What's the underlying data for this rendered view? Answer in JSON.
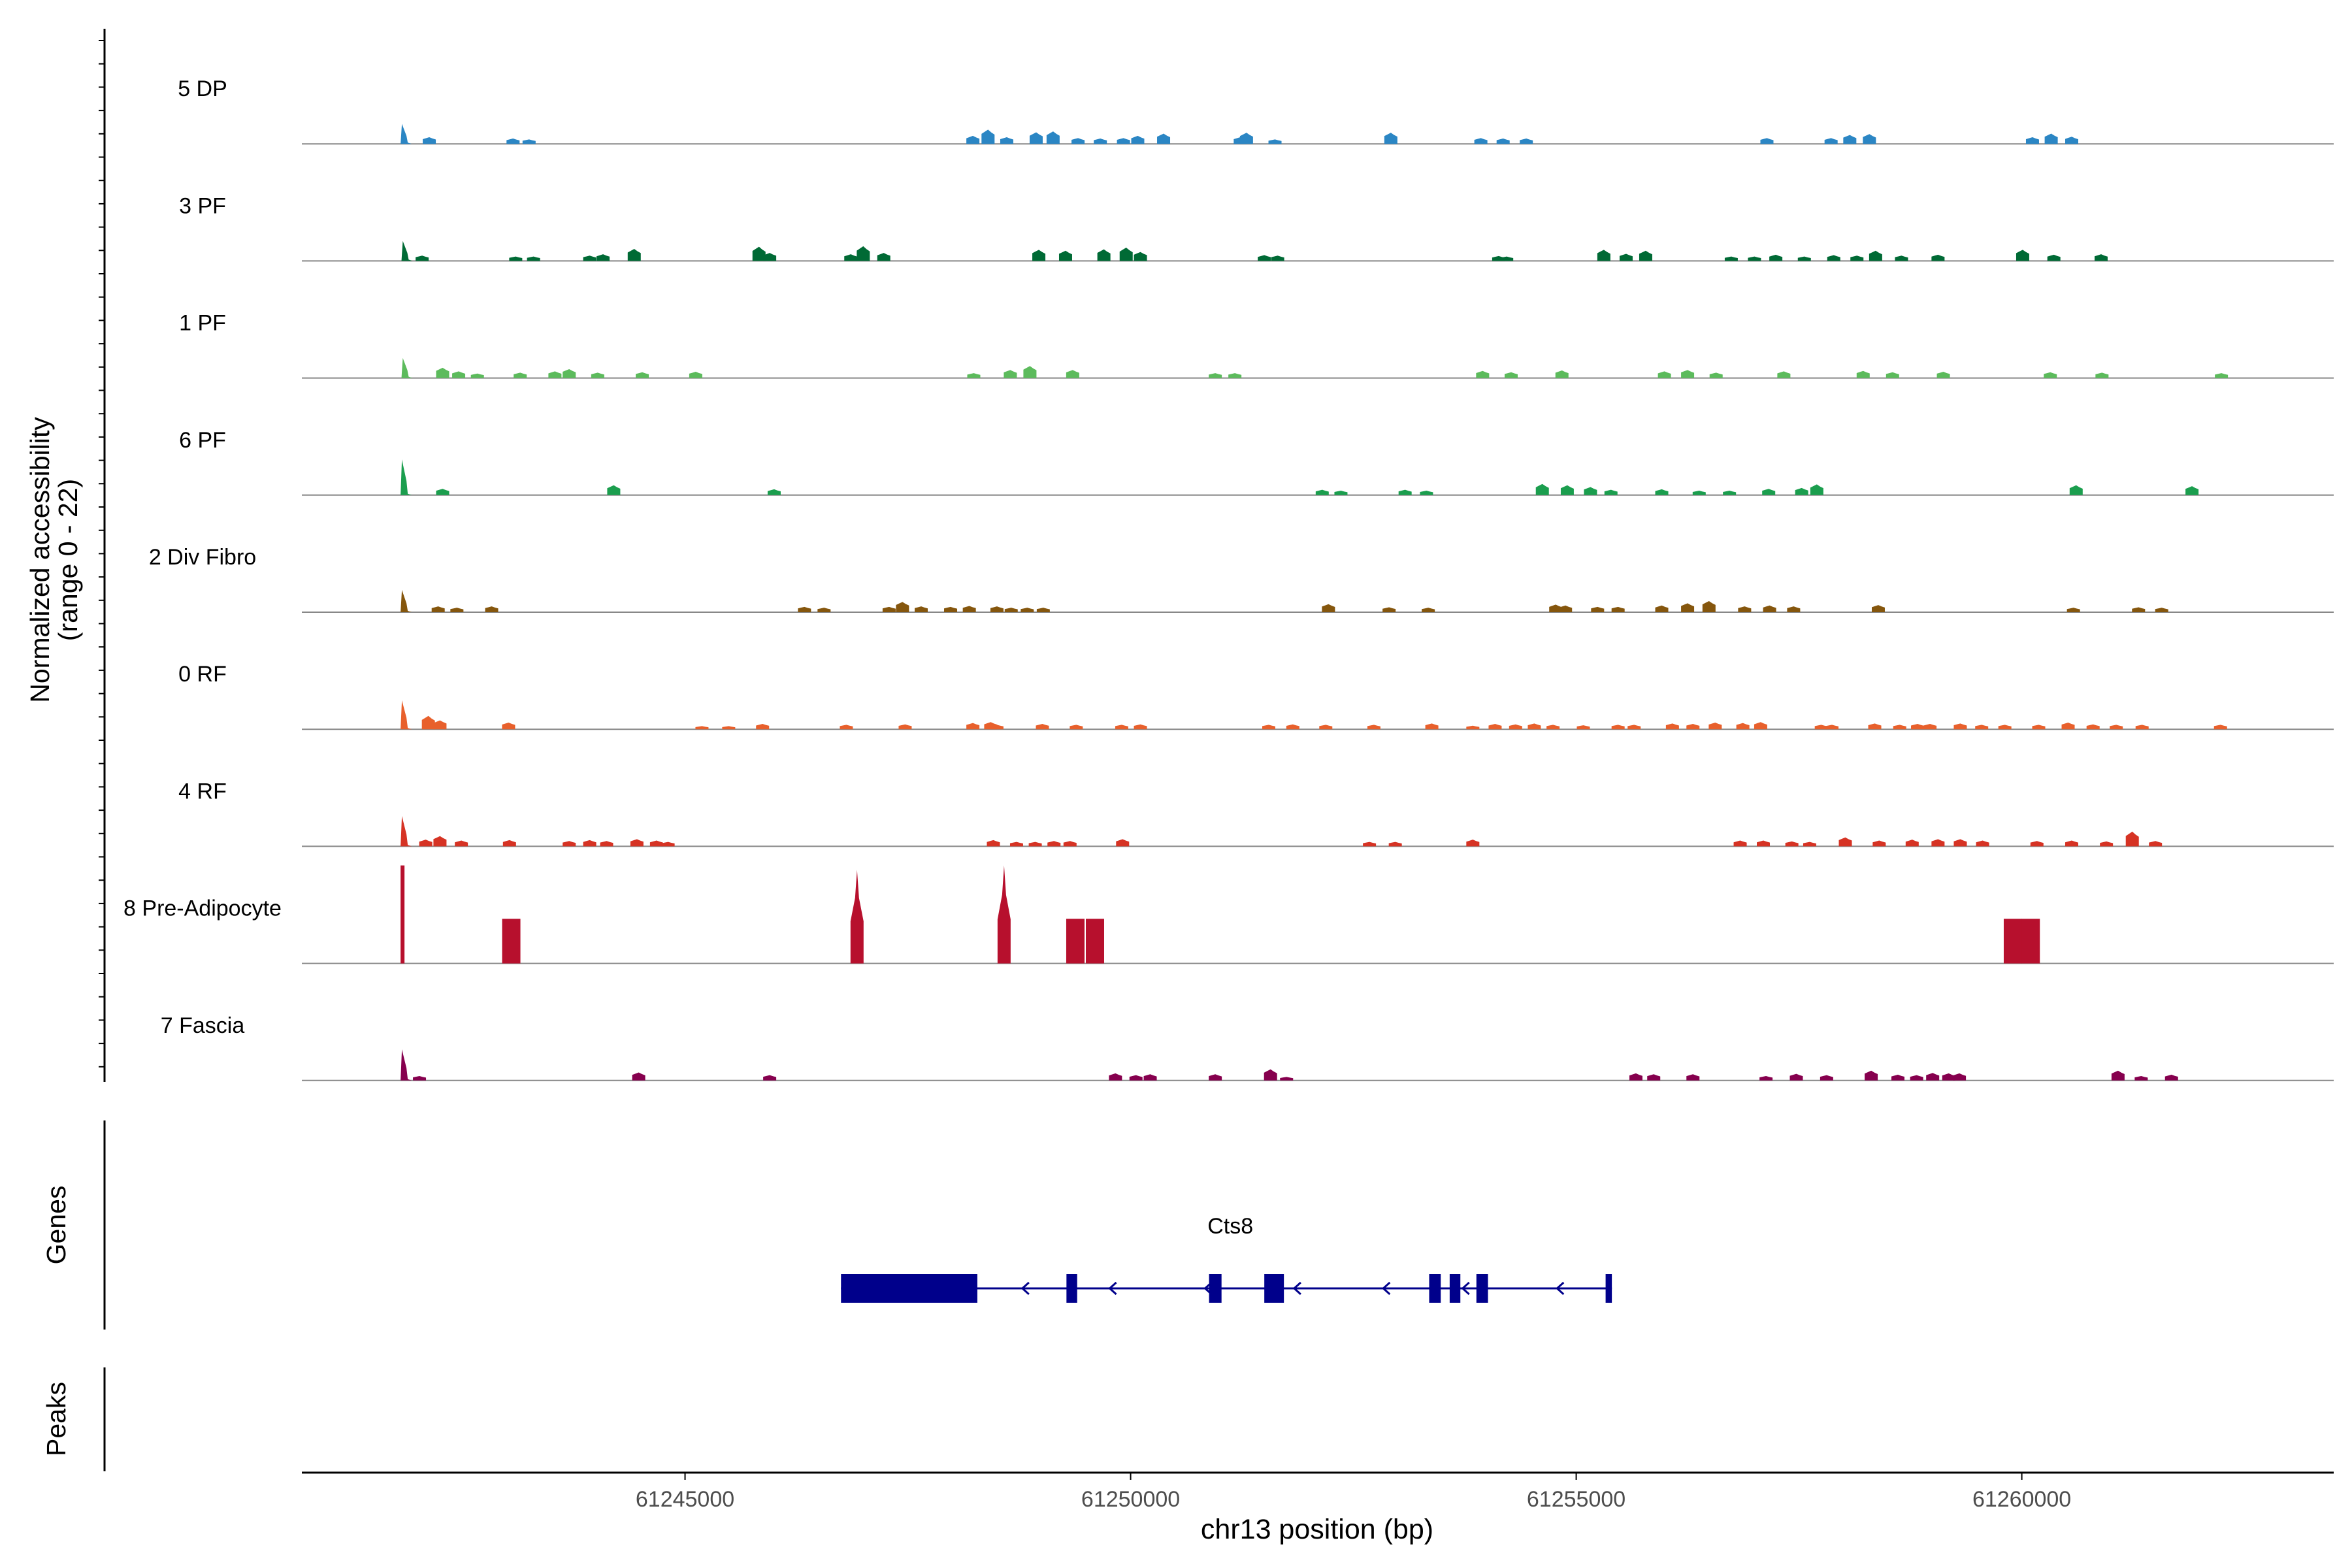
{
  "chart_data": {
    "type": "area",
    "title": "",
    "xlabel": "chr13 position (bp)",
    "ylabel": "Normalized accessibility\n(range 0 - 22)",
    "ylim": [
      0,
      22
    ],
    "xlim": [
      61240700,
      61263500
    ],
    "x_ticks": [
      61245000,
      61250000,
      61255000,
      61260000
    ],
    "x_tick_labels": [
      "61245000",
      "61250000",
      "61255000",
      "61260000"
    ],
    "track_labels": {
      "genes": "Genes",
      "peaks": "Peaks"
    },
    "series": [
      {
        "name": "5 DP",
        "color": "#2b86c4",
        "points": [
          [
            61241830,
            4.5
          ],
          [
            61242130,
            1.5
          ],
          [
            61243070,
            1.2
          ],
          [
            61243250,
            1
          ],
          [
            61248230,
            1.8
          ],
          [
            61248400,
            3.2
          ],
          [
            61248610,
            1.5
          ],
          [
            61248940,
            2.6
          ],
          [
            61249130,
            2.8
          ],
          [
            61249410,
            1.3
          ],
          [
            61249660,
            1.2
          ],
          [
            61249920,
            1.3
          ],
          [
            61250080,
            1.8
          ],
          [
            61250370,
            2.3
          ],
          [
            61251230,
            1.5
          ],
          [
            61251300,
            2.5
          ],
          [
            61251620,
            1
          ],
          [
            61252920,
            2.5
          ],
          [
            61253930,
            1.3
          ],
          [
            61254180,
            1.2
          ],
          [
            61254440,
            1.2
          ],
          [
            61257140,
            1.3
          ],
          [
            61257860,
            1.3
          ],
          [
            61258070,
            2
          ],
          [
            61258290,
            2.2
          ],
          [
            61260120,
            1.5
          ],
          [
            61260330,
            2.3
          ],
          [
            61260560,
            1.6
          ]
        ]
      },
      {
        "name": "3 PF",
        "color": "#006a35",
        "points": [
          [
            61241840,
            4.5
          ],
          [
            61242050,
            1.2
          ],
          [
            61243100,
            1
          ],
          [
            61243300,
            1
          ],
          [
            61243930,
            1.2
          ],
          [
            61244080,
            1.5
          ],
          [
            61244430,
            2.7
          ],
          [
            61245830,
            3.2
          ],
          [
            61245950,
            1.8
          ],
          [
            61246860,
            1.5
          ],
          [
            61247000,
            3.3
          ],
          [
            61247230,
            1.8
          ],
          [
            61248970,
            2.5
          ],
          [
            61249270,
            2.3
          ],
          [
            61249700,
            2.6
          ],
          [
            61249950,
            3
          ],
          [
            61250110,
            2
          ],
          [
            61251500,
            1.3
          ],
          [
            61251650,
            1.2
          ],
          [
            61254130,
            1.1
          ],
          [
            61254220,
            1
          ],
          [
            61255310,
            2.5
          ],
          [
            61255560,
            1.6
          ],
          [
            61255780,
            2.3
          ],
          [
            61256740,
            1
          ],
          [
            61257000,
            1
          ],
          [
            61257240,
            1.4
          ],
          [
            61257560,
            1
          ],
          [
            61257890,
            1.3
          ],
          [
            61258150,
            1.2
          ],
          [
            61258360,
            2.3
          ],
          [
            61258650,
            1.2
          ],
          [
            61259060,
            1.4
          ],
          [
            61260010,
            2.5
          ],
          [
            61260360,
            1.4
          ],
          [
            61260890,
            1.5
          ]
        ]
      },
      {
        "name": "1 PF",
        "color": "#5cbb5c",
        "points": [
          [
            61241840,
            4.5
          ],
          [
            61242280,
            2.3
          ],
          [
            61242460,
            1.5
          ],
          [
            61242670,
            1
          ],
          [
            61243150,
            1.2
          ],
          [
            61243540,
            1.5
          ],
          [
            61243700,
            2
          ],
          [
            61244020,
            1.2
          ],
          [
            61244520,
            1.3
          ],
          [
            61245120,
            1.4
          ],
          [
            61248240,
            1.1
          ],
          [
            61248650,
            1.8
          ],
          [
            61248870,
            2.7
          ],
          [
            61249350,
            1.8
          ],
          [
            61250950,
            1.1
          ],
          [
            61251170,
            1.1
          ],
          [
            61253950,
            1.6
          ],
          [
            61254270,
            1.3
          ],
          [
            61254840,
            1.7
          ],
          [
            61255990,
            1.5
          ],
          [
            61256250,
            1.8
          ],
          [
            61256570,
            1.2
          ],
          [
            61257330,
            1.5
          ],
          [
            61258220,
            1.6
          ],
          [
            61258550,
            1.3
          ],
          [
            61259120,
            1.4
          ],
          [
            61260320,
            1.3
          ],
          [
            61260900,
            1.2
          ],
          [
            61262240,
            1.1
          ]
        ]
      },
      {
        "name": "6 PF",
        "color": "#1b9e4e",
        "points": [
          [
            61241830,
            8
          ],
          [
            61242280,
            1.4
          ],
          [
            61244200,
            2.2
          ],
          [
            61246000,
            1.3
          ],
          [
            61252150,
            1.2
          ],
          [
            61252360,
            1
          ],
          [
            61253080,
            1.2
          ],
          [
            61253320,
            1
          ],
          [
            61254620,
            2.5
          ],
          [
            61254900,
            2.2
          ],
          [
            61255160,
            1.8
          ],
          [
            61255390,
            1.2
          ],
          [
            61255960,
            1.3
          ],
          [
            61256380,
            1
          ],
          [
            61256720,
            1
          ],
          [
            61257160,
            1.4
          ],
          [
            61257530,
            1.6
          ],
          [
            61257700,
            2.4
          ],
          [
            61260610,
            2.2
          ],
          [
            61261910,
            2
          ]
        ]
      },
      {
        "name": "2 Div Fibro",
        "color": "#85560d",
        "points": [
          [
            61241830,
            5
          ],
          [
            61242230,
            1.3
          ],
          [
            61242440,
            1
          ],
          [
            61242830,
            1.3
          ],
          [
            61246340,
            1.2
          ],
          [
            61246560,
            1
          ],
          [
            61247290,
            1.2
          ],
          [
            61247440,
            2.3
          ],
          [
            61247650,
            1.3
          ],
          [
            61247980,
            1.2
          ],
          [
            61248190,
            1.4
          ],
          [
            61248500,
            1.3
          ],
          [
            61248660,
            1
          ],
          [
            61248840,
            1
          ],
          [
            61249020,
            1
          ],
          [
            61252220,
            1.8
          ],
          [
            61252900,
            1.1
          ],
          [
            61253340,
            1
          ],
          [
            61254770,
            1.7
          ],
          [
            61254880,
            1.5
          ],
          [
            61255240,
            1.2
          ],
          [
            61255470,
            1.2
          ],
          [
            61255960,
            1.5
          ],
          [
            61256250,
            2
          ],
          [
            61256490,
            2.5
          ],
          [
            61256890,
            1.3
          ],
          [
            61257170,
            1.5
          ],
          [
            61257440,
            1.3
          ],
          [
            61258390,
            1.6
          ],
          [
            61260580,
            1
          ],
          [
            61261310,
            1.1
          ],
          [
            61261570,
            1
          ]
        ]
      },
      {
        "name": "0 RF",
        "color": "#e8602c",
        "points": [
          [
            61241830,
            6.5
          ],
          [
            61242120,
            3
          ],
          [
            61242250,
            2
          ],
          [
            61243020,
            1.5
          ],
          [
            61245190,
            0.7
          ],
          [
            61245490,
            0.7
          ],
          [
            61245870,
            1.2
          ],
          [
            61246810,
            1
          ],
          [
            61247470,
            1.1
          ],
          [
            61248230,
            1.4
          ],
          [
            61248430,
            1.6
          ],
          [
            61248500,
            1
          ],
          [
            61249010,
            1.2
          ],
          [
            61249390,
            1
          ],
          [
            61249900,
            1
          ],
          [
            61250110,
            1.1
          ],
          [
            61251550,
            1
          ],
          [
            61251820,
            1.1
          ],
          [
            61252190,
            1
          ],
          [
            61252730,
            1
          ],
          [
            61253380,
            1.3
          ],
          [
            61253840,
            0.8
          ],
          [
            61254090,
            1.2
          ],
          [
            61254320,
            1.1
          ],
          [
            61254530,
            1.3
          ],
          [
            61254740,
            1
          ],
          [
            61255080,
            0.9
          ],
          [
            61255470,
            1
          ],
          [
            61255650,
            1
          ],
          [
            61256080,
            1.3
          ],
          [
            61256310,
            1.2
          ],
          [
            61256560,
            1.5
          ],
          [
            61256870,
            1.4
          ],
          [
            61257070,
            1.6
          ],
          [
            61257750,
            1
          ],
          [
            61257870,
            1
          ],
          [
            61258350,
            1.3
          ],
          [
            61258630,
            1
          ],
          [
            61258830,
            1.2
          ],
          [
            61258970,
            1.2
          ],
          [
            61259310,
            1.3
          ],
          [
            61259550,
            1
          ],
          [
            61259810,
            1
          ],
          [
            61260190,
            1
          ],
          [
            61260520,
            1.5
          ],
          [
            61260800,
            1.1
          ],
          [
            61261060,
            1
          ],
          [
            61261350,
            1
          ],
          [
            61262230,
            1
          ]
        ]
      },
      {
        "name": "4 RF",
        "color": "#d63324",
        "points": [
          [
            61241830,
            6.8
          ],
          [
            61242090,
            1.5
          ],
          [
            61242250,
            2.3
          ],
          [
            61242490,
            1.3
          ],
          [
            61243030,
            1.4
          ],
          [
            61243700,
            1.2
          ],
          [
            61243930,
            1.4
          ],
          [
            61244120,
            1.2
          ],
          [
            61244460,
            1.6
          ],
          [
            61244680,
            1.3
          ],
          [
            61244810,
            1
          ],
          [
            61248460,
            1.4
          ],
          [
            61248720,
            1
          ],
          [
            61248930,
            1
          ],
          [
            61249140,
            1.2
          ],
          [
            61249320,
            1.2
          ],
          [
            61249910,
            1.6
          ],
          [
            61252680,
            1
          ],
          [
            61252970,
            1
          ],
          [
            61253840,
            1.5
          ],
          [
            61256840,
            1.3
          ],
          [
            61257100,
            1.3
          ],
          [
            61257420,
            1.1
          ],
          [
            61257620,
            1
          ],
          [
            61258020,
            2
          ],
          [
            61258400,
            1.3
          ],
          [
            61258770,
            1.5
          ],
          [
            61259060,
            1.6
          ],
          [
            61259310,
            1.6
          ],
          [
            61259560,
            1.3
          ],
          [
            61260170,
            1.2
          ],
          [
            61260560,
            1.3
          ],
          [
            61260950,
            1.1
          ],
          [
            61261240,
            3.3
          ],
          [
            61261500,
            1.2
          ]
        ]
      },
      {
        "name": "8 Pre-Adipocyte",
        "color": "#b7102d",
        "points": [
          [
            61241830,
            22
          ],
          [
            61243050,
            10
          ],
          [
            61246930,
            21
          ],
          [
            61248580,
            22
          ],
          [
            61249380,
            10
          ],
          [
            61249600,
            10
          ],
          [
            61259900,
            10
          ],
          [
            61260100,
            10
          ]
        ]
      },
      {
        "name": "7 Fascia",
        "color": "#86004e",
        "points": [
          [
            61241830,
            7
          ],
          [
            61242020,
            1
          ],
          [
            61244480,
            1.8
          ],
          [
            61245950,
            1.2
          ],
          [
            61249830,
            1.6
          ],
          [
            61250060,
            1.2
          ],
          [
            61250220,
            1.4
          ],
          [
            61250950,
            1.4
          ],
          [
            61251570,
            2.5
          ],
          [
            61251750,
            0.8
          ],
          [
            61255670,
            1.6
          ],
          [
            61255870,
            1.4
          ],
          [
            61256310,
            1.4
          ],
          [
            61257130,
            1
          ],
          [
            61257470,
            1.5
          ],
          [
            61257810,
            1.2
          ],
          [
            61258310,
            2.2
          ],
          [
            61258610,
            1.3
          ],
          [
            61258820,
            1.2
          ],
          [
            61259000,
            1.7
          ],
          [
            61259180,
            1.6
          ],
          [
            61259300,
            1.6
          ],
          [
            61261080,
            2.2
          ],
          [
            61261340,
            1
          ],
          [
            61261680,
            1.3
          ]
        ]
      }
    ],
    "gene": {
      "name": "Cts8",
      "strand": "-",
      "start": 61246750,
      "end": 61255400,
      "exons": [
        [
          61246750,
          61248280
        ],
        [
          61249280,
          61249400
        ],
        [
          61250880,
          61251020
        ],
        [
          61251500,
          61251720
        ],
        [
          61253350,
          61253480
        ],
        [
          61253580,
          61253700
        ],
        [
          61253880,
          61254010
        ],
        [
          61255330,
          61255400
        ]
      ],
      "arrows": [
        61248800,
        61249780,
        61250850,
        61251850,
        61252850,
        61253740,
        61254800
      ]
    }
  }
}
